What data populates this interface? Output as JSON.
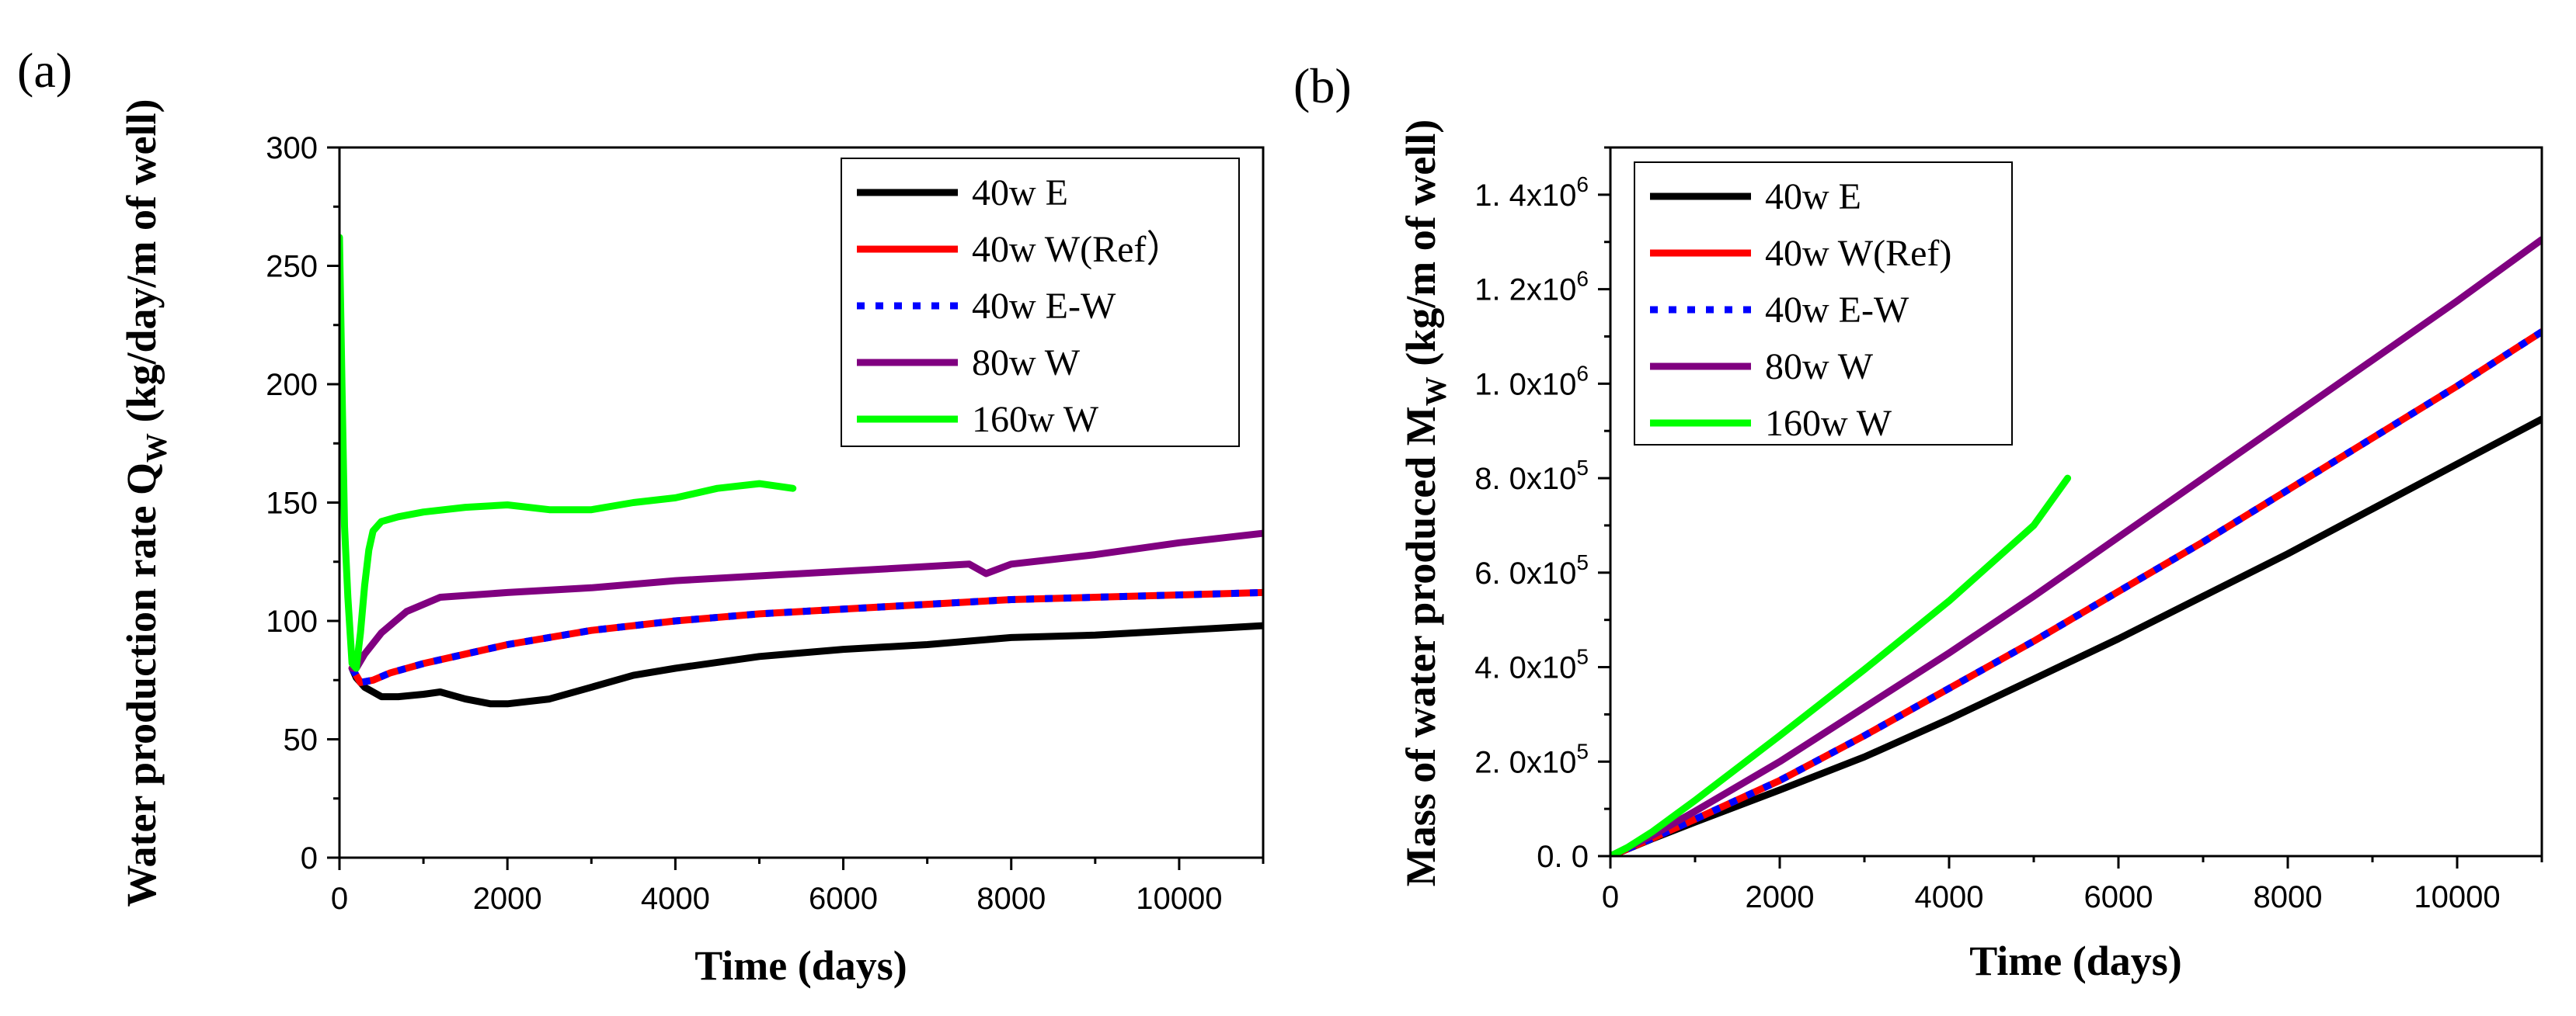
{
  "chart_data": [
    {
      "panel": "(a)",
      "type": "line",
      "xlabel": "Time (days)",
      "ylabel_main": "Water production rate Q",
      "ylabel_sub": "W",
      "ylabel_units": " (kg/day/m of well)",
      "xlim": [
        0,
        11000
      ],
      "ylim": [
        0,
        300
      ],
      "xticks": [
        0,
        2000,
        4000,
        6000,
        8000,
        10000
      ],
      "xtick_labels": [
        "0",
        "2000",
        "4000",
        "6000",
        "8000",
        "10000"
      ],
      "yticks": [
        0,
        50,
        100,
        150,
        200,
        250,
        300
      ],
      "ytick_labels": [
        "0",
        "50",
        "100",
        "150",
        "200",
        "250",
        "300"
      ],
      "legend_position": "top-right",
      "series": [
        {
          "name": "40w E",
          "color": "#000000",
          "dash": "solid",
          "x": [
            150,
            200,
            300,
            400,
            500,
            700,
            1000,
            1200,
            1500,
            1800,
            2000,
            2500,
            3000,
            3500,
            4000,
            5000,
            6000,
            7000,
            8000,
            9000,
            10000,
            11000
          ],
          "y": [
            80,
            76,
            72,
            70,
            68,
            68,
            69,
            70,
            67,
            65,
            65,
            67,
            72,
            77,
            80,
            85,
            88,
            90,
            93,
            94,
            96,
            98
          ]
        },
        {
          "name": "40w W(Ref）",
          "color": "#ff0000",
          "dash": "solid",
          "x": [
            150,
            250,
            400,
            600,
            1000,
            1500,
            2000,
            3000,
            4000,
            5000,
            6000,
            7000,
            8000,
            9000,
            10000,
            11000
          ],
          "y": [
            80,
            74,
            75,
            78,
            82,
            86,
            90,
            96,
            100,
            103,
            105,
            107,
            109,
            110,
            111,
            112
          ]
        },
        {
          "name": "40w E-W",
          "color": "#0000ff",
          "dash": "dotted",
          "x": [
            150,
            250,
            400,
            600,
            1000,
            1500,
            2000,
            3000,
            4000,
            5000,
            6000,
            7000,
            8000,
            9000,
            10000,
            11000
          ],
          "y": [
            80,
            74,
            75,
            78,
            82,
            86,
            90,
            96,
            100,
            103,
            105,
            107,
            109,
            110,
            111,
            112
          ]
        },
        {
          "name": "80w W",
          "color": "#800080",
          "dash": "solid",
          "x": [
            150,
            200,
            300,
            500,
            800,
            1200,
            2000,
            3000,
            4000,
            5000,
            6000,
            7000,
            7500,
            7700,
            8000,
            9000,
            10000,
            11000
          ],
          "y": [
            80,
            80,
            86,
            95,
            104,
            110,
            112,
            114,
            117,
            119,
            121,
            123,
            124,
            120,
            124,
            128,
            133,
            137
          ]
        },
        {
          "name": "160w W",
          "color": "#00ff00",
          "dash": "solid",
          "x": [
            0,
            30,
            60,
            100,
            150,
            200,
            250,
            300,
            350,
            400,
            500,
            700,
            1000,
            1500,
            2000,
            2500,
            3000,
            3500,
            4000,
            4500,
            5000,
            5400
          ],
          "y": [
            262,
            200,
            140,
            110,
            82,
            80,
            95,
            115,
            130,
            138,
            142,
            144,
            146,
            148,
            149,
            147,
            147,
            150,
            152,
            156,
            158,
            156
          ]
        }
      ]
    },
    {
      "panel": "(b)",
      "type": "line",
      "xlabel": "Time (days)",
      "ylabel_main": "Mass of water produced M",
      "ylabel_sub": "W",
      "ylabel_units": " (kg/m of well)",
      "xlim": [
        0,
        11000
      ],
      "ylim": [
        0,
        1500000
      ],
      "xticks": [
        0,
        2000,
        4000,
        6000,
        8000,
        10000
      ],
      "xtick_labels": [
        "0",
        "2000",
        "4000",
        "6000",
        "8000",
        "10000"
      ],
      "yticks": [
        0,
        200000,
        400000,
        600000,
        800000,
        1000000,
        1200000,
        1400000
      ],
      "ytick_labels": [
        {
          "mant": "0. 0",
          "exp": ""
        },
        {
          "mant": "2. 0x10",
          "exp": "5"
        },
        {
          "mant": "4. 0x10",
          "exp": "5"
        },
        {
          "mant": "6. 0x10",
          "exp": "5"
        },
        {
          "mant": "8. 0x10",
          "exp": "5"
        },
        {
          "mant": "1. 0x10",
          "exp": "6"
        },
        {
          "mant": "1. 2x10",
          "exp": "6"
        },
        {
          "mant": "1. 4x10",
          "exp": "6"
        }
      ],
      "legend_position": "top-left",
      "series": [
        {
          "name": "40w E",
          "color": "#000000",
          "dash": "solid",
          "x": [
            0,
            500,
            1000,
            2000,
            3000,
            4000,
            5000,
            6000,
            7000,
            8000,
            9000,
            10000,
            11000
          ],
          "y": [
            0,
            37000,
            72000,
            140000,
            210000,
            290000,
            375000,
            460000,
            550000,
            640000,
            735000,
            830000,
            925000
          ]
        },
        {
          "name": "40w W(Ref)",
          "color": "#ff0000",
          "dash": "solid",
          "x": [
            0,
            500,
            1000,
            2000,
            3000,
            4000,
            5000,
            6000,
            7000,
            8000,
            9000,
            10000,
            11000
          ],
          "y": [
            0,
            38000,
            78000,
            160000,
            255000,
            355000,
            455000,
            560000,
            665000,
            775000,
            885000,
            995000,
            1110000
          ]
        },
        {
          "name": "40w E-W",
          "color": "#0000ff",
          "dash": "dotted",
          "x": [
            0,
            500,
            1000,
            2000,
            3000,
            4000,
            5000,
            6000,
            7000,
            8000,
            9000,
            10000,
            11000
          ],
          "y": [
            0,
            38000,
            78000,
            160000,
            255000,
            355000,
            455000,
            560000,
            665000,
            775000,
            885000,
            995000,
            1110000
          ]
        },
        {
          "name": "80w W",
          "color": "#800080",
          "dash": "solid",
          "x": [
            0,
            500,
            1000,
            2000,
            3000,
            4000,
            5000,
            6000,
            7000,
            8000,
            9000,
            10000,
            11000
          ],
          "y": [
            0,
            44000,
            95000,
            200000,
            315000,
            430000,
            550000,
            675000,
            800000,
            925000,
            1050000,
            1175000,
            1305000
          ]
        },
        {
          "name": "160w W",
          "color": "#00ff00",
          "dash": "solid",
          "x": [
            0,
            200,
            500,
            1000,
            2000,
            3000,
            4000,
            5000,
            5400
          ],
          "y": [
            0,
            18000,
            52000,
            118000,
            255000,
            395000,
            540000,
            700000,
            800000
          ]
        }
      ]
    }
  ]
}
